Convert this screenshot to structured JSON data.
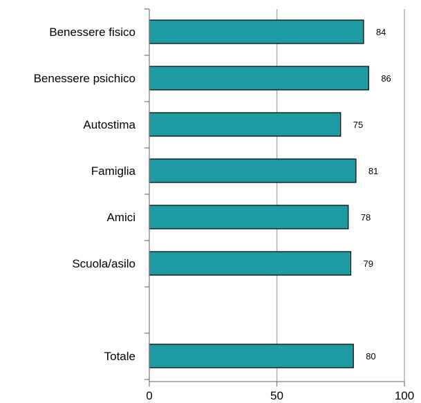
{
  "chart_data": {
    "type": "bar",
    "orientation": "horizontal",
    "categories": [
      "Benessere fisico",
      "Benessere psichico",
      "Autostima",
      "Famiglia",
      "Amici",
      "Scuola/asilo",
      "",
      "Totale"
    ],
    "values": [
      84,
      86,
      75,
      81,
      78,
      79,
      null,
      80
    ],
    "data_labels": [
      "84",
      "86",
      "75",
      "81",
      "78",
      "79",
      "",
      "80"
    ],
    "xlim": [
      0,
      100
    ],
    "xticks": [
      "0",
      "50",
      "100"
    ],
    "title": "",
    "xlabel": "",
    "ylabel": "",
    "grid": "vertical",
    "legend": "none",
    "colors": {
      "bar": "#1e9aa3",
      "bar_stroke": "#000000",
      "grid": "#a6a6a6",
      "axis": "#808080"
    }
  }
}
